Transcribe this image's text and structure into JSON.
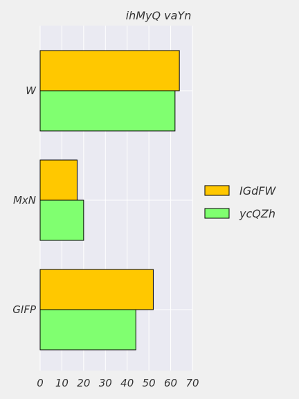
{
  "chart_data": {
    "type": "bar",
    "orientation": "horizontal",
    "title": "ihMyQ  vaYn",
    "categories": [
      "W",
      "MxN",
      "GIFP"
    ],
    "series": [
      {
        "name": "IGdFW",
        "values": [
          64,
          17,
          52
        ]
      },
      {
        "name": "ycQZh",
        "values": [
          62,
          20,
          44
        ]
      }
    ],
    "xlim": [
      0,
      70
    ],
    "xticks": [
      "0",
      "10",
      "20",
      "30",
      "40",
      "50",
      "60",
      "70"
    ],
    "grid": true,
    "legend_position": "right"
  },
  "colors": {
    "page_background": "#f0f0f0",
    "plot_background": "#eaeaf2",
    "grid": "#ffffff",
    "bar_edge": "#000000",
    "series": [
      "#ffc800",
      "#80ff70"
    ]
  }
}
